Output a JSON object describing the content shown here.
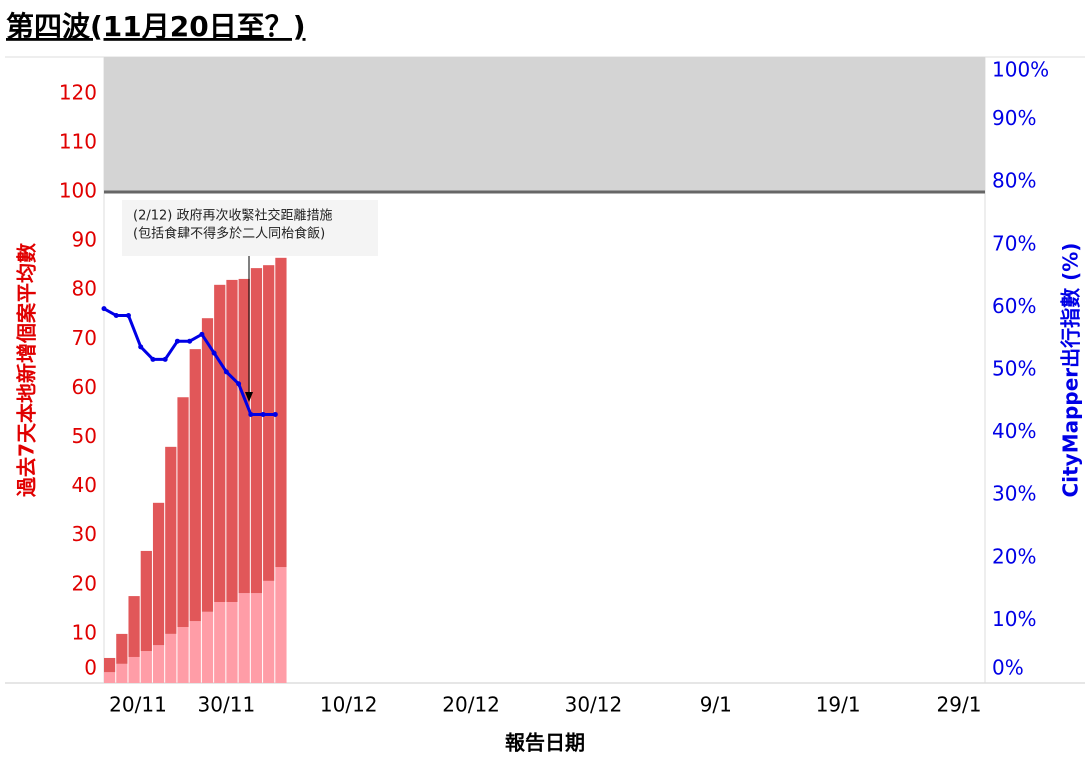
{
  "chart_data": {
    "type": "bar",
    "title": "第四波(11月20日至？)",
    "xlabel": "報告日期",
    "ylabel": "過去7天本地新增個案平均數",
    "y2label": "CityMapper出行指數 (%)",
    "annotation": [
      "(2/12) 政府再次收緊社交距離措施",
      "(包括食肆不得多於二人同枱食飯)"
    ],
    "x": [
      "20/11",
      "21/11",
      "22/11",
      "23/11",
      "24/11",
      "25/11",
      "26/11",
      "27/11",
      "28/11",
      "29/11",
      "30/11",
      "1/12",
      "2/12",
      "3/12",
      "4/12"
    ],
    "xlim": [
      "20/11",
      "31/1"
    ],
    "xticks": [
      "20/11",
      "30/11",
      "10/12",
      "20/12",
      "30/12",
      "9/1",
      "19/1",
      "29/1"
    ],
    "ylim": [
      0,
      127.5
    ],
    "yticks": [
      0,
      10,
      20,
      30,
      40,
      50,
      60,
      70,
      80,
      90,
      100,
      110,
      120
    ],
    "y2lim": [
      0,
      100
    ],
    "y2ticks": [
      {
        "value": 0,
        "label": "0%"
      },
      {
        "value": 10,
        "label": "10%"
      },
      {
        "value": 20,
        "label": "20%"
      },
      {
        "value": 30,
        "label": "30%"
      },
      {
        "value": 40,
        "label": "40%"
      },
      {
        "value": 50,
        "label": "50%"
      },
      {
        "value": 60,
        "label": "60%"
      },
      {
        "value": 70,
        "label": "70%"
      },
      {
        "value": 80,
        "label": "80%"
      },
      {
        "value": 90,
        "label": "90%"
      },
      {
        "value": 100,
        "label": "100%"
      }
    ],
    "reference_line": 100,
    "series": [
      {
        "color": "#ff9da7",
        "values": [
          2.2,
          3.9,
          5.3,
          6.5,
          7.7,
          10,
          11.4,
          12.6,
          14.5,
          16.5,
          16.5,
          18.3,
          18.3,
          20.8,
          23.6
        ]
      },
      {
        "color": "#e15759",
        "values": [
          2.9,
          6.1,
          12.4,
          20.4,
          29,
          38.1,
          46.8,
          55.4,
          59.8,
          64.6,
          65.6,
          64,
          66.2,
          64.3,
          63
        ]
      },
      {
        "color": "#0000e6",
        "type": "line",
        "axis": "y2",
        "values": [
          59.8,
          58.7,
          58.7,
          53.7,
          51.7,
          51.7,
          54.6,
          54.6,
          55.7,
          52.7,
          49.7,
          47.8,
          42.9,
          42.9,
          42.9
        ]
      }
    ]
  }
}
